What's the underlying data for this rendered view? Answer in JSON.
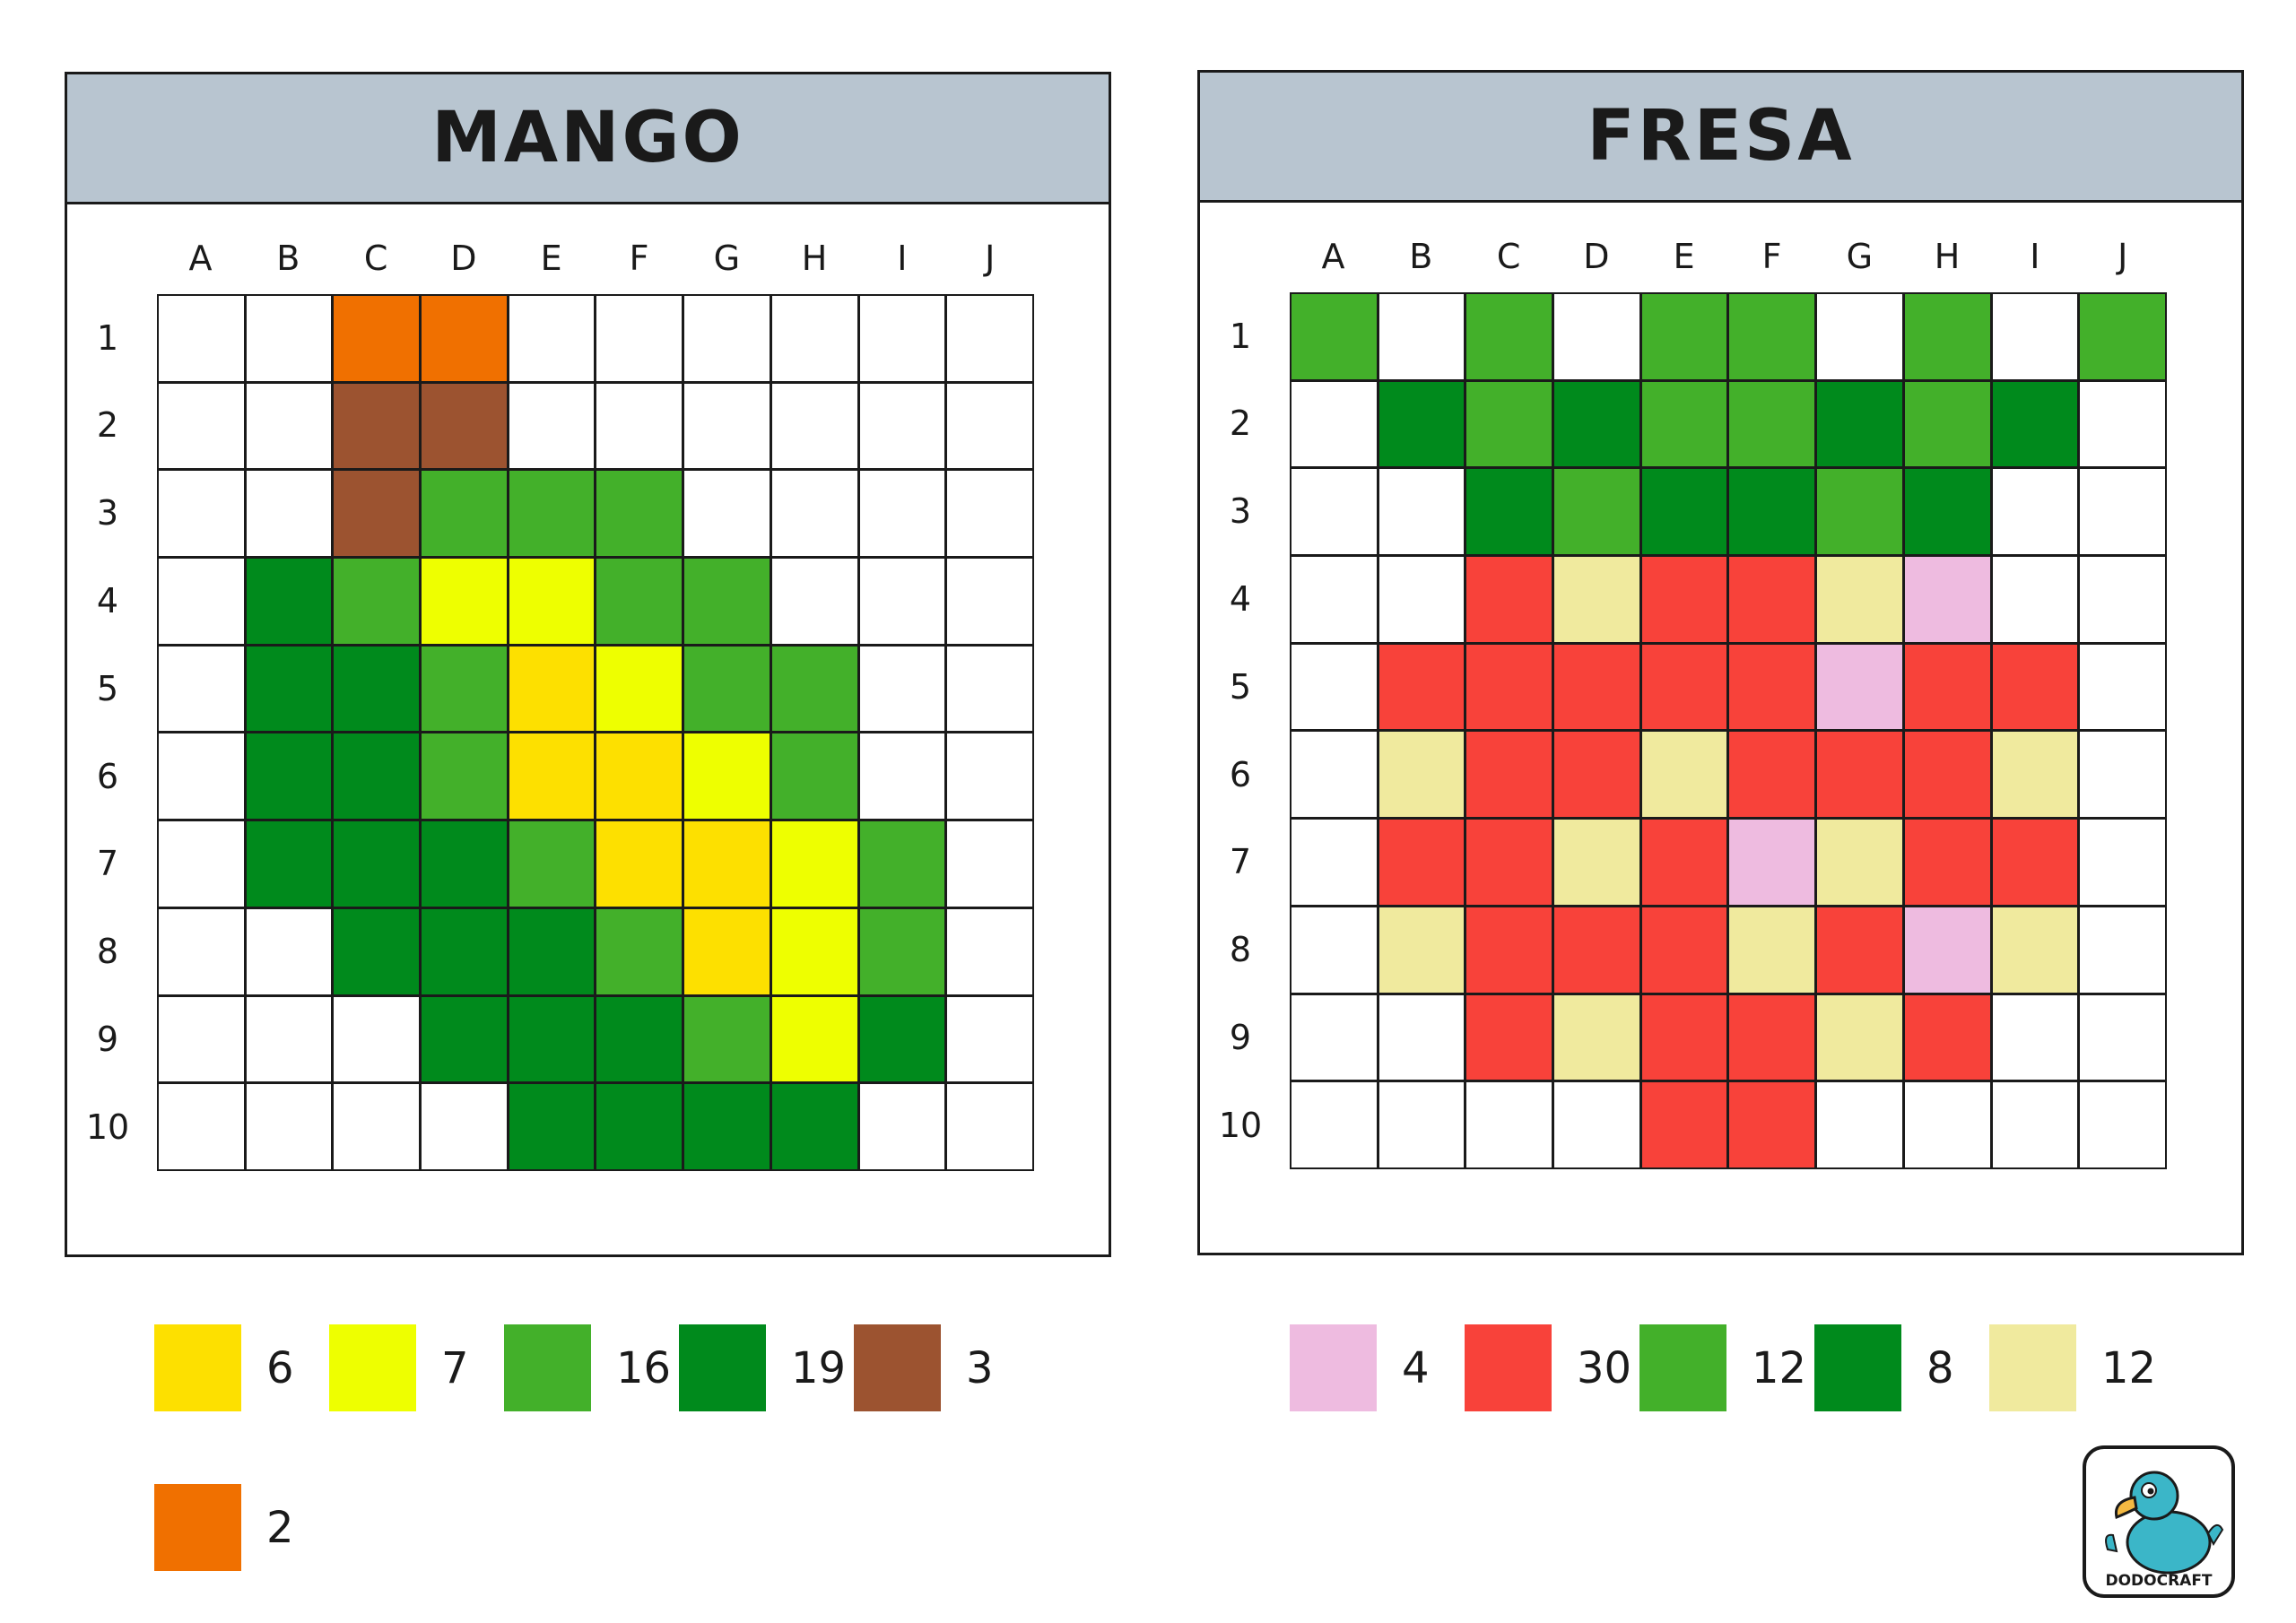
{
  "colors": {
    "white": "#ffffff",
    "yellow": "#fde000",
    "lime": "#eeff00",
    "light_green": "#43b02a",
    "dark_green": "#008a1c",
    "brown": "#9c5330",
    "orange": "#f07000",
    "pink": "#eebbe0",
    "red": "#f8423a",
    "cream": "#f0ea9e",
    "header_bg": "#b8c5d0"
  },
  "columns": [
    "A",
    "B",
    "C",
    "D",
    "E",
    "F",
    "G",
    "H",
    "I",
    "J"
  ],
  "rows": [
    "1",
    "2",
    "3",
    "4",
    "5",
    "6",
    "7",
    "8",
    "9",
    "10"
  ],
  "mango": {
    "title": "MANGO",
    "grid": [
      [
        "w",
        "w",
        "or",
        "or",
        "w",
        "w",
        "w",
        "w",
        "w",
        "w"
      ],
      [
        "w",
        "w",
        "br",
        "br",
        "w",
        "w",
        "w",
        "w",
        "w",
        "w"
      ],
      [
        "w",
        "w",
        "br",
        "lg",
        "lg",
        "lg",
        "w",
        "w",
        "w",
        "w"
      ],
      [
        "w",
        "dg",
        "lg",
        "li",
        "li",
        "lg",
        "lg",
        "w",
        "w",
        "w"
      ],
      [
        "w",
        "dg",
        "dg",
        "lg",
        "ye",
        "li",
        "lg",
        "lg",
        "w",
        "w"
      ],
      [
        "w",
        "dg",
        "dg",
        "lg",
        "ye",
        "ye",
        "li",
        "lg",
        "w",
        "w"
      ],
      [
        "w",
        "dg",
        "dg",
        "dg",
        "lg",
        "ye",
        "ye",
        "li",
        "lg",
        "w"
      ],
      [
        "w",
        "w",
        "dg",
        "dg",
        "dg",
        "lg",
        "ye",
        "li",
        "lg",
        "w"
      ],
      [
        "w",
        "w",
        "w",
        "dg",
        "dg",
        "dg",
        "lg",
        "li",
        "dg",
        "w"
      ],
      [
        "w",
        "w",
        "w",
        "w",
        "dg",
        "dg",
        "dg",
        "dg",
        "w",
        "w"
      ]
    ],
    "legend": [
      {
        "color": "ye",
        "count": "6"
      },
      {
        "color": "li",
        "count": "7"
      },
      {
        "color": "lg",
        "count": "16"
      },
      {
        "color": "dg",
        "count": "19"
      },
      {
        "color": "br",
        "count": "3"
      },
      {
        "color": "or",
        "count": "2"
      }
    ]
  },
  "fresa": {
    "title": "FRESA",
    "grid": [
      [
        "lg",
        "w",
        "lg",
        "w",
        "lg",
        "lg",
        "w",
        "lg",
        "w",
        "lg"
      ],
      [
        "w",
        "dg",
        "lg",
        "dg",
        "lg",
        "lg",
        "dg",
        "lg",
        "dg",
        "w"
      ],
      [
        "w",
        "w",
        "dg",
        "lg",
        "dg",
        "dg",
        "lg",
        "dg",
        "w",
        "w"
      ],
      [
        "w",
        "w",
        "rd",
        "cr",
        "rd",
        "rd",
        "cr",
        "pk",
        "w",
        "w"
      ],
      [
        "w",
        "rd",
        "rd",
        "rd",
        "rd",
        "rd",
        "pk",
        "rd",
        "rd",
        "w"
      ],
      [
        "w",
        "cr",
        "rd",
        "rd",
        "cr",
        "rd",
        "rd",
        "rd",
        "cr",
        "w"
      ],
      [
        "w",
        "rd",
        "rd",
        "cr",
        "rd",
        "pk",
        "cr",
        "rd",
        "rd",
        "w"
      ],
      [
        "w",
        "cr",
        "rd",
        "rd",
        "rd",
        "cr",
        "rd",
        "pk",
        "cr",
        "w"
      ],
      [
        "w",
        "w",
        "rd",
        "cr",
        "rd",
        "rd",
        "cr",
        "rd",
        "w",
        "w"
      ],
      [
        "w",
        "w",
        "w",
        "w",
        "rd",
        "rd",
        "w",
        "w",
        "w",
        "w"
      ]
    ],
    "legend": [
      {
        "color": "pk",
        "count": "4"
      },
      {
        "color": "rd",
        "count": "30"
      },
      {
        "color": "lg",
        "count": "12"
      },
      {
        "color": "dg",
        "count": "8"
      },
      {
        "color": "cr",
        "count": "12"
      }
    ]
  },
  "logo": {
    "text": "DODOCRAFT",
    "icon": "dodo-bird-icon"
  }
}
